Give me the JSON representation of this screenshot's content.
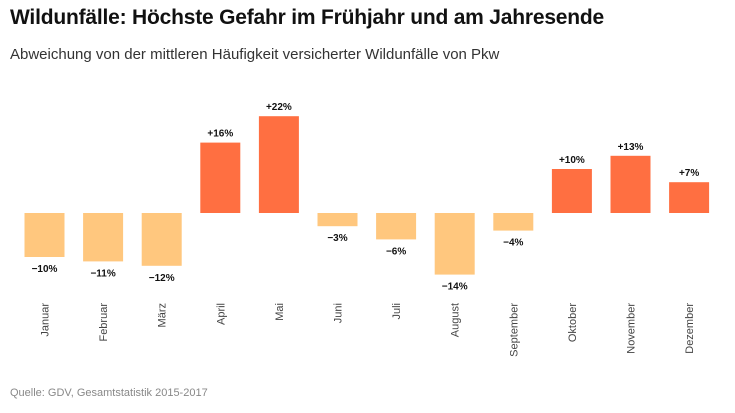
{
  "title": "Wildunfälle: Höchste Gefahr im Frühjahr und am Jahresende",
  "subtitle": "Abweichung von der mittleren Häufigkeit versicherter Wildunfälle von Pkw",
  "source": "Quelle: GDV, Gesamtstatistik 2015-2017",
  "colors": {
    "positive": "#ff6f41",
    "negative": "#ffc77e"
  },
  "chart_data": {
    "type": "bar",
    "categories": [
      "Januar",
      "Februar",
      "März",
      "April",
      "Mai",
      "Juni",
      "Juli",
      "August",
      "September",
      "Oktober",
      "November",
      "Dezember"
    ],
    "values": [
      -10,
      -11,
      -12,
      16,
      22,
      -3,
      -6,
      -14,
      -4,
      10,
      13,
      7
    ],
    "value_labels": [
      "−10%",
      "−11%",
      "−12%",
      "+16%",
      "+22%",
      "−3%",
      "−6%",
      "−14%",
      "−4%",
      "+10%",
      "+13%",
      "+7%"
    ],
    "title": "Wildunfälle: Höchste Gefahr im Frühjahr und am Jahresende",
    "subtitle": "Abweichung von der mittleren Häufigkeit versicherter Wildunfälle von Pkw",
    "xlabel": "",
    "ylabel": "",
    "ylim": [
      -14,
      22
    ],
    "grid": false,
    "legend": "none"
  }
}
